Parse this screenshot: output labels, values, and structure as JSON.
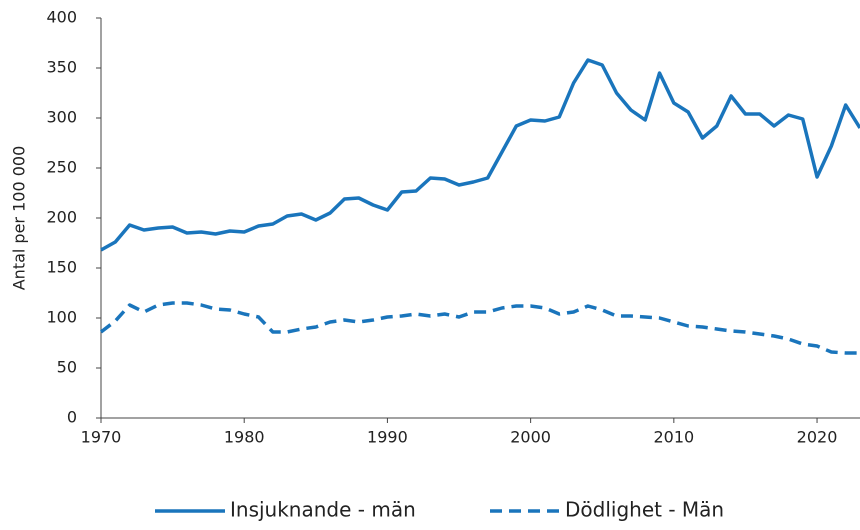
{
  "chart_data": {
    "type": "line",
    "y_label": "Antal per 100 000",
    "x": [
      1970,
      1971,
      1972,
      1973,
      1974,
      1975,
      1976,
      1977,
      1978,
      1979,
      1980,
      1981,
      1982,
      1983,
      1984,
      1985,
      1986,
      1987,
      1988,
      1989,
      1990,
      1991,
      1992,
      1993,
      1994,
      1995,
      1996,
      1997,
      1998,
      1999,
      2000,
      2001,
      2002,
      2003,
      2004,
      2005,
      2006,
      2007,
      2008,
      2009,
      2010,
      2011,
      2012,
      2013,
      2014,
      2015,
      2016,
      2017,
      2018,
      2019,
      2020,
      2021,
      2022,
      2023
    ],
    "series": [
      {
        "name": "Insjuknande - män",
        "color": "#1a75bc",
        "dashed": false,
        "values": [
          168,
          176,
          193,
          188,
          190,
          191,
          185,
          186,
          184,
          187,
          186,
          192,
          194,
          202,
          204,
          198,
          205,
          219,
          220,
          213,
          208,
          226,
          227,
          240,
          239,
          233,
          236,
          240,
          266,
          292,
          298,
          297,
          301,
          335,
          358,
          353,
          325,
          308,
          298,
          345,
          315,
          306,
          280,
          292,
          322,
          304,
          304,
          292,
          303,
          299,
          241,
          272,
          313,
          290
        ]
      },
      {
        "name": "Dödlighet - Män",
        "color": "#1a75bc",
        "dashed": true,
        "values": [
          86,
          97,
          113,
          106,
          113,
          115,
          115,
          113,
          109,
          108,
          104,
          101,
          86,
          86,
          89,
          91,
          96,
          98,
          96,
          98,
          101,
          102,
          104,
          102,
          104,
          101,
          106,
          106,
          110,
          112,
          112,
          110,
          104,
          106,
          112,
          108,
          102,
          102,
          101,
          100,
          96,
          92,
          91,
          89,
          87,
          86,
          84,
          82,
          79,
          74,
          72,
          66,
          65,
          65
        ]
      }
    ],
    "xlim": [
      1970,
      2023
    ],
    "xticks": [
      1970,
      1980,
      1990,
      2000,
      2010,
      2020
    ],
    "ylim": [
      0,
      400
    ],
    "yticks": [
      0,
      50,
      100,
      150,
      200,
      250,
      300,
      350,
      400
    ],
    "grid": false,
    "legend": "bottom"
  }
}
